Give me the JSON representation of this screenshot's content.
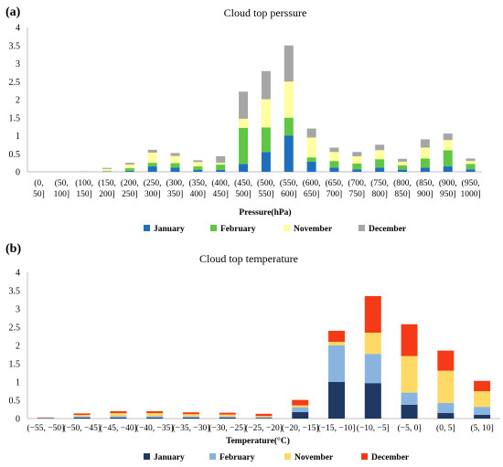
{
  "chart_data": [
    {
      "panel_label": "(a)",
      "type": "bar",
      "stacked": true,
      "title": "Cloud top perssure",
      "xlabel": "Pressure(hPa)",
      "ylabel": "",
      "ylim": [
        0,
        4
      ],
      "yticks": [
        "0",
        "0.5",
        "1",
        "1.5",
        "2",
        "2.5",
        "3",
        "3.5",
        "4"
      ],
      "categories": [
        [
          "(0,",
          "50]"
        ],
        [
          "(50,",
          "100]"
        ],
        [
          "(100,",
          "150]"
        ],
        [
          "(150,",
          "200]"
        ],
        [
          "(200,",
          "250]"
        ],
        [
          "(250,",
          "300]"
        ],
        [
          "(300,",
          "350]"
        ],
        [
          "(350,",
          "400]"
        ],
        [
          "(400,",
          "450]"
        ],
        [
          "(450,",
          "500]"
        ],
        [
          "(500,",
          "550]"
        ],
        [
          "(550,",
          "600]"
        ],
        [
          "(600,",
          "650]"
        ],
        [
          "(650,",
          "700]"
        ],
        [
          "(700,",
          "750]"
        ],
        [
          "(750,",
          "800]"
        ],
        [
          "(800,",
          "850]"
        ],
        [
          "(850,",
          "900]"
        ],
        [
          "(900,",
          "950]"
        ],
        [
          "(950,",
          "1000]"
        ]
      ],
      "series": [
        {
          "name": "January",
          "color": "#1f6fbf",
          "values": [
            0,
            0,
            0,
            0.01,
            0.03,
            0.15,
            0.12,
            0.05,
            0.05,
            0.22,
            0.55,
            1.0,
            0.28,
            0.12,
            0.07,
            0.12,
            0.06,
            0.12,
            0.15,
            0.07
          ]
        },
        {
          "name": "February",
          "color": "#5fc743",
          "values": [
            0,
            0,
            0,
            0.01,
            0.07,
            0.1,
            0.12,
            0.1,
            0.15,
            1.0,
            0.68,
            0.5,
            0.12,
            0.18,
            0.16,
            0.23,
            0.12,
            0.25,
            0.45,
            0.15
          ]
        },
        {
          "name": "November",
          "color": "#ffffa0",
          "values": [
            0,
            0,
            0.01,
            0.06,
            0.1,
            0.28,
            0.2,
            0.12,
            0.05,
            0.25,
            0.78,
            1.0,
            0.55,
            0.25,
            0.2,
            0.25,
            0.1,
            0.3,
            0.28,
            0.08
          ]
        },
        {
          "name": "December",
          "color": "#a6a6a6",
          "values": [
            0,
            0,
            0.01,
            0.03,
            0.05,
            0.08,
            0.08,
            0.05,
            0.18,
            0.75,
            0.78,
            1.0,
            0.25,
            0.12,
            0.12,
            0.15,
            0.08,
            0.23,
            0.18,
            0.07
          ]
        }
      ]
    },
    {
      "panel_label": "(b)",
      "type": "bar",
      "stacked": true,
      "title": "Cloud top temperature",
      "xlabel": "Temperature(°C)",
      "ylabel": "",
      "ylim": [
        0,
        4
      ],
      "yticks": [
        "0",
        "0.5",
        "1",
        "1.5",
        "2",
        "2.5",
        "3",
        "3.5",
        "4"
      ],
      "categories": [
        "(−55, −50]",
        "(−50, −45]",
        "(−45, −40]",
        "(−40, −35]",
        "(−35, −30]",
        "(−30, −25]",
        "(−25, −20]",
        "(−20, −15]",
        "(−15, −10]",
        "(−10, −5]",
        "(−5, 0]",
        "(0, 5]",
        "(5, 10]"
      ],
      "series": [
        {
          "name": "January",
          "color": "#1f3864",
          "values": [
            0.01,
            0.03,
            0.03,
            0.03,
            0.03,
            0.03,
            0.02,
            0.18,
            1.0,
            0.97,
            0.38,
            0.15,
            0.1
          ]
        },
        {
          "name": "February",
          "color": "#8ab4e0",
          "values": [
            0.01,
            0.03,
            0.04,
            0.04,
            0.03,
            0.03,
            0.02,
            0.13,
            1.0,
            0.8,
            0.33,
            0.28,
            0.22
          ]
        },
        {
          "name": "November",
          "color": "#ffd966",
          "values": [
            0,
            0.04,
            0.08,
            0.08,
            0.06,
            0.05,
            0.03,
            0.05,
            0.1,
            0.58,
            1.0,
            0.88,
            0.43
          ]
        },
        {
          "name": "December",
          "color": "#f43a17",
          "values": [
            0.01,
            0.04,
            0.05,
            0.05,
            0.05,
            0.05,
            0.06,
            0.15,
            0.3,
            1.0,
            0.87,
            0.55,
            0.28
          ]
        }
      ]
    }
  ]
}
